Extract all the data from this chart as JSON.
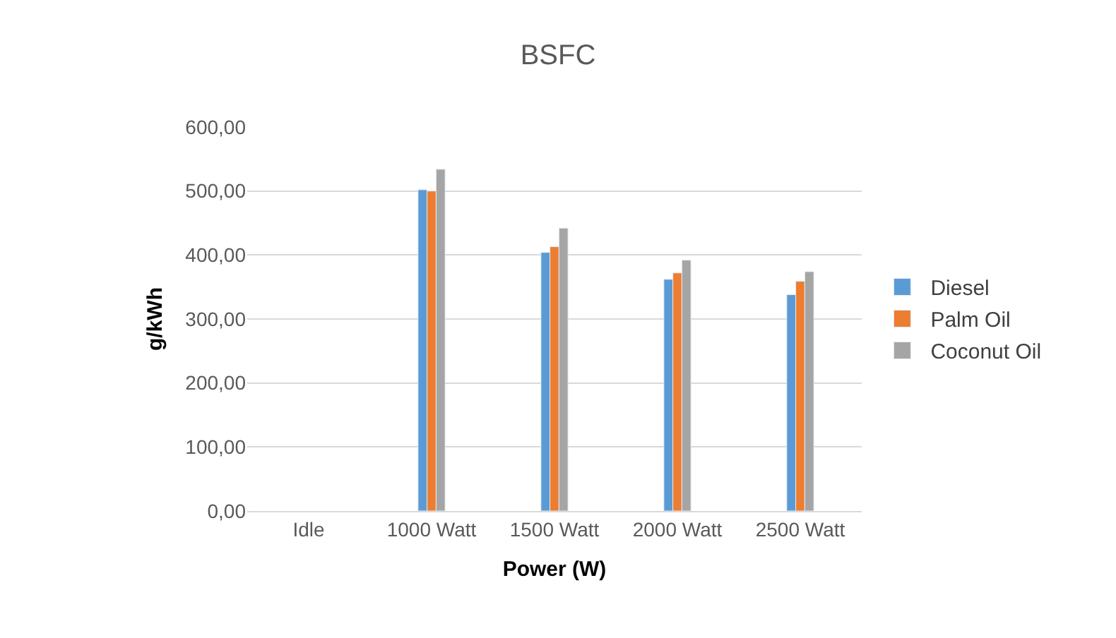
{
  "chart_data": {
    "type": "bar",
    "title": "BSFC",
    "xlabel": "Power (W)",
    "ylabel": "g/kWh",
    "categories": [
      "Idle",
      "1000 Watt",
      "1500 Watt",
      "2000 Watt",
      "2500 Watt"
    ],
    "series": [
      {
        "name": "Diesel",
        "color": "#5b9bd5",
        "values": [
          null,
          502,
          404,
          362,
          338
        ]
      },
      {
        "name": "Palm Oil",
        "color": "#ed7d31",
        "values": [
          null,
          500,
          413,
          372,
          359
        ]
      },
      {
        "name": "Coconut Oil",
        "color": "#a5a5a5",
        "values": [
          null,
          534,
          442,
          392,
          374
        ]
      }
    ],
    "ylim": [
      0,
      600
    ],
    "yticks": [
      {
        "value": 0,
        "label": "0,00"
      },
      {
        "value": 100,
        "label": "100,00"
      },
      {
        "value": 200,
        "label": "200,00"
      },
      {
        "value": 300,
        "label": "300,00"
      },
      {
        "value": 400,
        "label": "400,00"
      },
      {
        "value": 500,
        "label": "500,00"
      },
      {
        "value": 600,
        "label": "600,00"
      }
    ],
    "grid": "y",
    "legend": "right"
  }
}
